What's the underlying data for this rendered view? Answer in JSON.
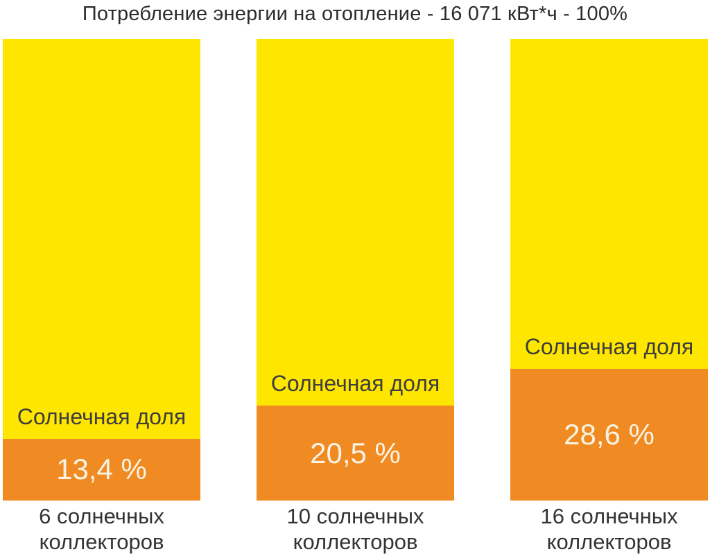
{
  "title": "Потребление энергии на отопление  - 16 071 кВт*ч - 100%",
  "chart_data": {
    "type": "bar",
    "stacked": true,
    "title": "Потребление энергии на отопление  - 16 071 кВт*ч - 100%",
    "total_consumption_label": "16 071 кВт*ч",
    "total_percent_label": "100%",
    "unit": "%",
    "ylim": [
      0,
      100
    ],
    "grid": false,
    "legend": "none",
    "segment_name": "Солнечная доля",
    "categories": [
      "6 солнечных коллекторов",
      "10 солнечных коллекторов",
      "16 солнечных коллекторов"
    ],
    "values": [
      13.4,
      20.5,
      28.6
    ],
    "bars": [
      {
        "solar_share_label": "Солнечная доля",
        "value": 13.4,
        "value_label": "13,4 %",
        "caption": "6 солнечных\nколлекторов"
      },
      {
        "solar_share_label": "Солнечная доля",
        "value": 20.5,
        "value_label": "20,5 %",
        "caption": "10 солнечных\nколлекторов"
      },
      {
        "solar_share_label": "Солнечная доля",
        "value": 28.6,
        "value_label": "28,6 %",
        "caption": "16 солнечных\nколлекторов"
      }
    ],
    "colors": {
      "solar_segment": "#EF8B22",
      "consumption_segment": "#FFE600",
      "value_text": "#FAF3E3",
      "label_text": "#3d3d3d",
      "title_text": "#2b2b2b",
      "caption_text": "#333333",
      "background": "#ffffff"
    }
  }
}
